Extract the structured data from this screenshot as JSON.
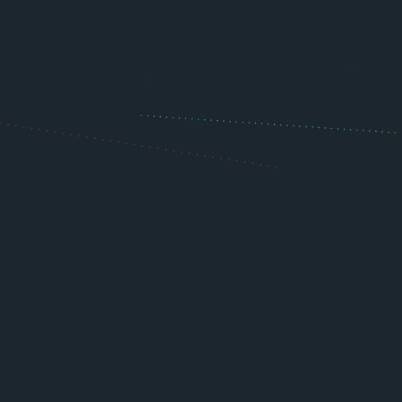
{
  "scene": {
    "background_color": "#1b262e",
    "lines": [
      {
        "name": "red-dotted-line",
        "color": "#8a3a44",
        "style": "dotted"
      },
      {
        "name": "green-dotted-line",
        "color": "#3fae6f",
        "style": "dotted"
      },
      {
        "name": "faint-dotted-line",
        "color": "#24323c",
        "style": "dotted"
      }
    ]
  }
}
